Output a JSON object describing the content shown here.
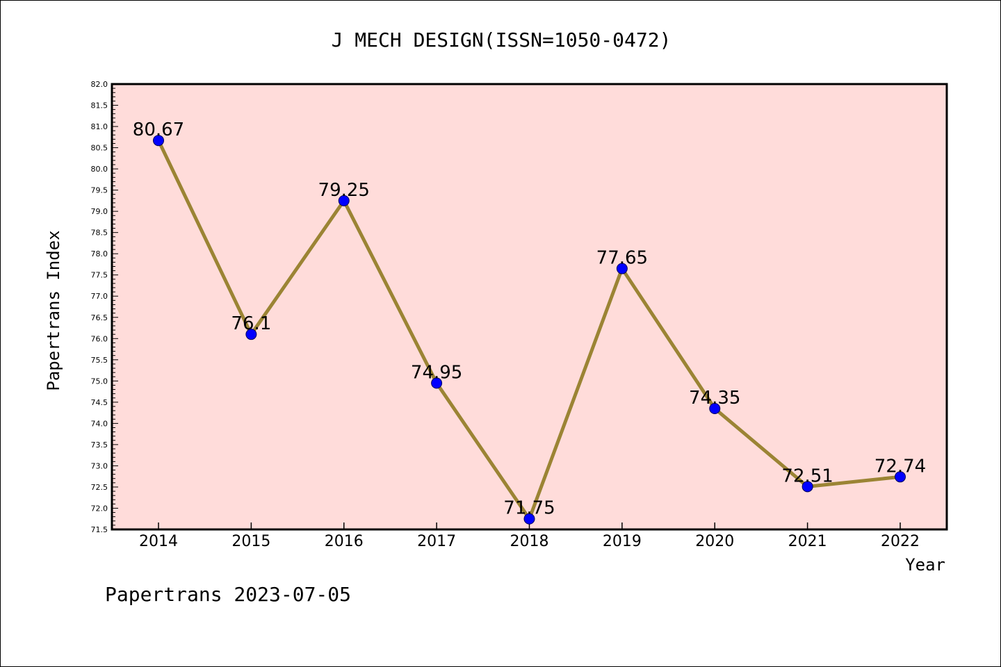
{
  "chart_data": {
    "type": "line",
    "title": "J MECH DESIGN(ISSN=1050-0472)",
    "xlabel": "Year",
    "ylabel": "Papertrans Index",
    "categories": [
      "2014",
      "2015",
      "2016",
      "2017",
      "2018",
      "2019",
      "2020",
      "2021",
      "2022"
    ],
    "values": [
      80.67,
      76.1,
      79.25,
      74.95,
      71.75,
      77.65,
      74.35,
      72.51,
      72.74
    ],
    "data_labels": [
      "80.67",
      "76.1",
      "79.25",
      "74.95",
      "71.75",
      "77.65",
      "74.35",
      "72.51",
      "72.74"
    ],
    "ylim": [
      71.5,
      82.0
    ],
    "yticks": [
      "71.5",
      "72.0",
      "72.5",
      "73.0",
      "73.5",
      "74.0",
      "74.5",
      "75.0",
      "75.5",
      "76.0",
      "76.5",
      "77.0",
      "77.5",
      "78.0",
      "78.5",
      "79.0",
      "79.5",
      "80.0",
      "80.5",
      "81.0",
      "81.5",
      "82.0"
    ],
    "grid": false,
    "colors": {
      "plot_background": "#FFDCDA",
      "line": "#9B8434",
      "marker": "#0000FF",
      "marker_edge": "#00005A",
      "axes": "#000000"
    }
  },
  "footer": {
    "text": "Papertrans 2023-07-05"
  }
}
